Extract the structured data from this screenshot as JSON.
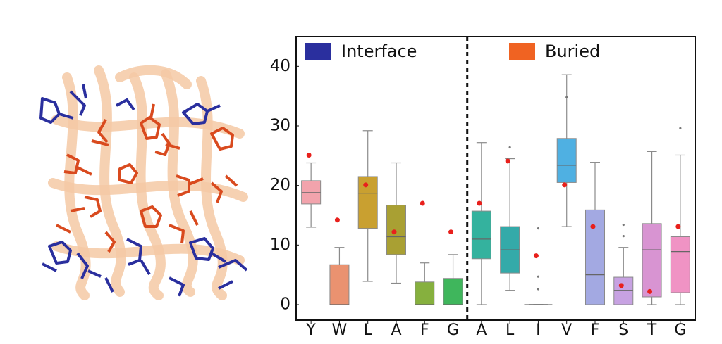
{
  "chart_data": {
    "type": "box",
    "ylim": [
      -2.6,
      45
    ],
    "yticks": [
      0,
      10,
      20,
      30,
      40
    ],
    "groups": [
      {
        "name": "Interface",
        "color": "#2a2f9e",
        "categories": [
          "Y",
          "W",
          "L",
          "A",
          "F",
          "G"
        ],
        "boxes": [
          {
            "color": "#f2a3ac",
            "low": 13.0,
            "q1": 16.9,
            "median": 18.8,
            "q3": 20.8,
            "high": 23.8,
            "dot": 25.1,
            "outliers": []
          },
          {
            "color": "#ea9270",
            "low": 0,
            "q1": 0,
            "median": 0,
            "q3": 6.7,
            "high": 9.6,
            "dot": 14.2,
            "outliers": []
          },
          {
            "color": "#c9a030",
            "low": 3.9,
            "q1": 12.8,
            "median": 18.7,
            "q3": 21.5,
            "high": 29.2,
            "dot": 20.1,
            "outliers": []
          },
          {
            "color": "#a9a033",
            "low": 3.6,
            "q1": 8.4,
            "median": 11.4,
            "q3": 16.7,
            "high": 23.8,
            "dot": 12.2,
            "outliers": []
          },
          {
            "color": "#86b03e",
            "low": 0,
            "q1": 0,
            "median": 0,
            "q3": 3.8,
            "high": 7.0,
            "dot": 17.0,
            "outliers": []
          },
          {
            "color": "#3fb65c",
            "low": 0,
            "q1": 0,
            "median": 0,
            "q3": 4.4,
            "high": 8.4,
            "dot": 12.2,
            "outliers": []
          }
        ]
      },
      {
        "name": "Buried",
        "color": "#f06322",
        "categories": [
          "A",
          "L",
          "I",
          "V",
          "F",
          "S",
          "T",
          "G"
        ],
        "boxes": [
          {
            "color": "#34b29e",
            "low": 0,
            "q1": 7.7,
            "median": 11.0,
            "q3": 15.7,
            "high": 27.2,
            "dot": 17.0,
            "outliers": []
          },
          {
            "color": "#34aaa9",
            "low": 2.4,
            "q1": 5.3,
            "median": 9.2,
            "q3": 13.1,
            "high": 24.5,
            "dot": 24.1,
            "outliers": [
              26.4
            ]
          },
          {
            "color": "#3aa6b8",
            "low": 0,
            "q1": 0,
            "median": 0,
            "q3": 0,
            "high": 0,
            "dot": 8.2,
            "outliers": [
              12.8,
              4.7,
              2.6
            ]
          },
          {
            "color": "#4fb0e2",
            "low": 13.1,
            "q1": 20.5,
            "median": 23.4,
            "q3": 27.9,
            "high": 38.6,
            "dot": 20.1,
            "outliers": [
              34.8
            ]
          },
          {
            "color": "#a3a9e2",
            "low": 0,
            "q1": 0,
            "median": 5.0,
            "q3": 15.9,
            "high": 23.9,
            "dot": 13.1,
            "outliers": []
          },
          {
            "color": "#c7a2e2",
            "low": 0,
            "q1": 0,
            "median": 2.4,
            "q3": 4.6,
            "high": 9.6,
            "dot": 3.2,
            "outliers": [
              13.4,
              11.5
            ]
          },
          {
            "color": "#d894d2",
            "low": 0,
            "q1": 1.3,
            "median": 9.2,
            "q3": 13.6,
            "high": 25.7,
            "dot": 2.2,
            "outliers": []
          },
          {
            "color": "#f093c4",
            "low": 0,
            "q1": 2.0,
            "median": 8.9,
            "q3": 11.4,
            "high": 25.1,
            "dot": 13.1,
            "outliers": [
              29.6
            ]
          }
        ]
      }
    ]
  }
}
